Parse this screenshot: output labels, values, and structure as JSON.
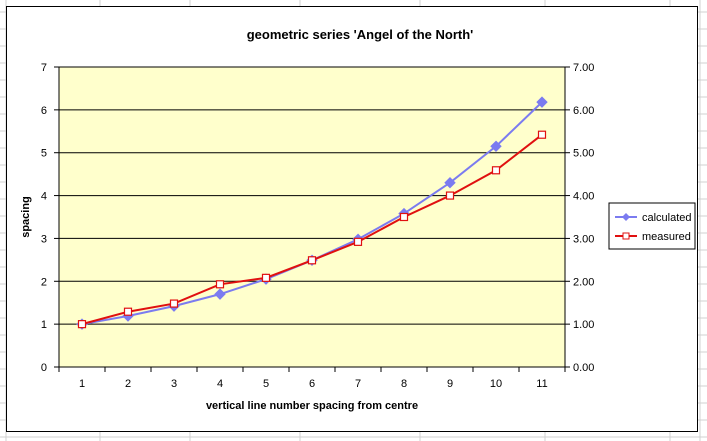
{
  "chart_data": {
    "type": "line",
    "title": "geometric series 'Angel of the North'",
    "xlabel": "vertical line number spacing from centre",
    "ylabel": "spacing",
    "categories": [
      "1",
      "2",
      "3",
      "4",
      "5",
      "6",
      "7",
      "8",
      "9",
      "10",
      "11"
    ],
    "x": [
      1,
      2,
      3,
      4,
      5,
      6,
      7,
      8,
      9,
      10,
      11
    ],
    "ylim": [
      0,
      7
    ],
    "y_ticks": [
      "0",
      "1",
      "2",
      "3",
      "4",
      "5",
      "6",
      "7"
    ],
    "y2_ticks": [
      "0.00",
      "1.00",
      "2.00",
      "3.00",
      "4.00",
      "5.00",
      "6.00",
      "7.00"
    ],
    "grid": true,
    "legend_position": "right",
    "series": [
      {
        "name": "calculated",
        "color": "#7b7bf0",
        "marker": "diamond",
        "values": [
          1.0,
          1.19,
          1.42,
          1.7,
          2.05,
          2.49,
          2.98,
          3.58,
          4.3,
          5.15,
          6.18
        ]
      },
      {
        "name": "measured",
        "color": "#e01010",
        "marker": "square",
        "values": [
          1.0,
          1.29,
          1.48,
          1.93,
          2.08,
          2.49,
          2.92,
          3.5,
          4.0,
          4.59,
          5.42
        ]
      }
    ],
    "plot_background": "#ffffcc"
  }
}
